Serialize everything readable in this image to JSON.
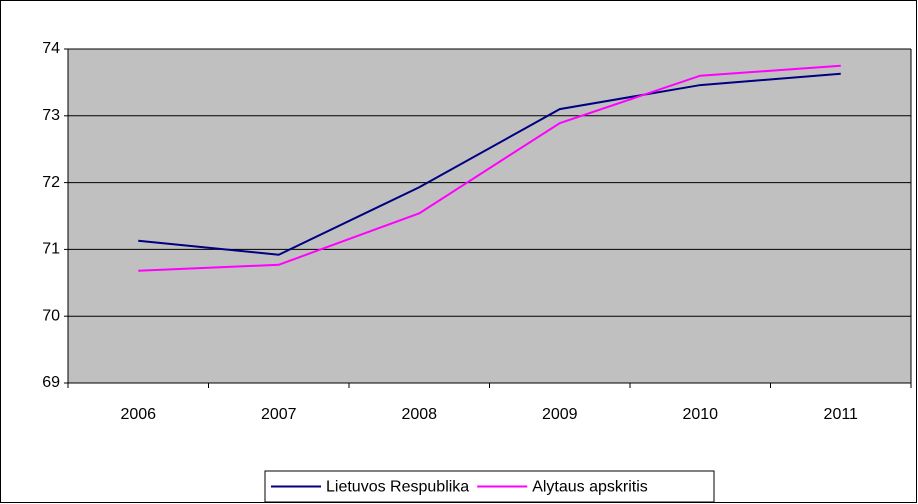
{
  "chart_data": {
    "type": "line",
    "categories": [
      "2006",
      "2007",
      "2008",
      "2009",
      "2010",
      "2011"
    ],
    "series": [
      {
        "name": "Lietuvos Respublika",
        "color": "#000080",
        "values": [
          71.13,
          70.92,
          71.93,
          73.1,
          73.46,
          73.63
        ]
      },
      {
        "name": "Alytaus apskritis",
        "color": "#ff00ff",
        "values": [
          70.68,
          70.77,
          71.54,
          72.89,
          73.6,
          73.75
        ]
      }
    ],
    "ylim": [
      69,
      74
    ],
    "yticks": [
      69,
      70,
      71,
      72,
      73,
      74
    ],
    "grid": true,
    "legend": "bottom"
  }
}
